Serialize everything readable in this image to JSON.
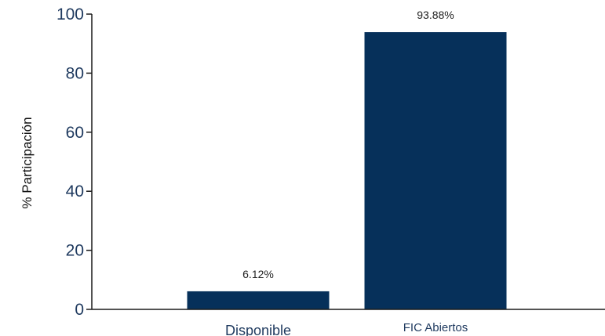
{
  "chart_data": {
    "type": "bar",
    "title": "",
    "xlabel": "",
    "ylabel": "% Participación",
    "categories": [
      "Disponible",
      "FIC Abiertos"
    ],
    "values": [
      6.12,
      93.88
    ],
    "data_labels": [
      "6.12%",
      "93.88%"
    ],
    "ylim": [
      0,
      100
    ],
    "yticks": [
      0,
      20,
      40,
      60,
      80,
      100
    ],
    "grid": false,
    "legend": "none",
    "colors": {
      "bar": "#06305a",
      "axis": "#1a1a1a",
      "tick_text": "#1f3a5f"
    }
  }
}
